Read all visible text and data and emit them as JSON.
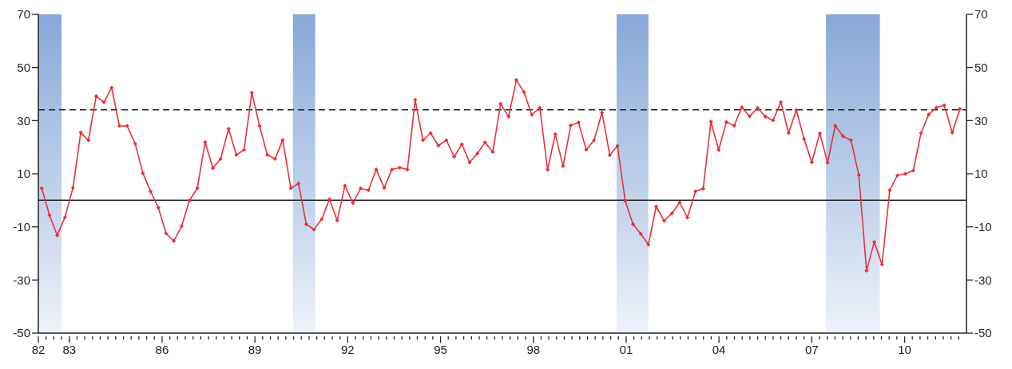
{
  "chart_data": {
    "type": "line",
    "color": "#e8303a",
    "marker": "diamond",
    "line_style": "solid",
    "x": [
      1982.11,
      1982.36,
      1982.61,
      1982.86,
      1983.12,
      1983.37,
      1983.62,
      1983.87,
      1984.12,
      1984.37,
      1984.62,
      1984.87,
      1985.13,
      1985.38,
      1985.63,
      1985.88,
      1986.13,
      1986.38,
      1986.63,
      1986.88,
      1987.14,
      1987.39,
      1987.64,
      1987.89,
      1988.15,
      1988.4,
      1988.65,
      1988.9,
      1989.15,
      1989.4,
      1989.65,
      1989.9,
      1990.16,
      1990.41,
      1990.66,
      1990.91,
      1991.16,
      1991.41,
      1991.66,
      1991.91,
      1992.17,
      1992.42,
      1992.67,
      1992.92,
      1993.18,
      1993.43,
      1993.68,
      1993.93,
      1994.18,
      1994.43,
      1994.68,
      1994.93,
      1995.19,
      1995.44,
      1995.69,
      1995.94,
      1996.19,
      1996.44,
      1996.69,
      1996.94,
      1997.2,
      1997.45,
      1997.7,
      1997.95,
      1998.21,
      1998.46,
      1998.71,
      1998.96,
      1999.21,
      1999.46,
      1999.71,
      1999.96,
      2000.22,
      2000.47,
      2000.72,
      2000.97,
      2001.22,
      2001.47,
      2001.72,
      2001.97,
      2002.23,
      2002.48,
      2002.73,
      2002.98,
      2003.24,
      2003.49,
      2003.74,
      2003.99,
      2004.24,
      2004.49,
      2004.74,
      2004.99,
      2005.25,
      2005.5,
      2005.75,
      2006.0,
      2006.25,
      2006.5,
      2006.75,
      2007.0,
      2007.26,
      2007.51,
      2007.76,
      2008.01,
      2008.27,
      2008.52,
      2008.77,
      2009.02,
      2009.27,
      2009.52,
      2009.77,
      2010.02,
      2010.28,
      2010.53,
      2010.78,
      2011.03,
      2011.28,
      2011.54,
      2011.79
    ],
    "values": [
      4.5,
      -5.6,
      -13.2,
      -6.4,
      4.7,
      25.5,
      22.6,
      39.2,
      36.9,
      42.4,
      28.0,
      28.0,
      21.3,
      10.2,
      3.3,
      -2.8,
      -12.5,
      -15.3,
      -9.8,
      -0.2,
      4.6,
      21.9,
      12.1,
      15.6,
      26.9,
      17.1,
      19.0,
      40.5,
      28.0,
      17.1,
      15.6,
      22.7,
      4.6,
      6.3,
      -9.0,
      -11.0,
      -7.1,
      0.4,
      -7.6,
      5.5,
      -1.0,
      4.5,
      3.8,
      11.6,
      4.7,
      11.6,
      12.3,
      11.6,
      37.8,
      22.6,
      25.3,
      20.6,
      22.6,
      16.4,
      21.1,
      14.3,
      17.6,
      21.8,
      18.2,
      36.3,
      31.5,
      45.3,
      40.7,
      32.2,
      34.9,
      11.5,
      24.9,
      12.9,
      28.2,
      29.3,
      19.0,
      22.6,
      33.0,
      17.0,
      20.5,
      -0.2,
      -9.0,
      -12.6,
      -16.7,
      -2.3,
      -7.7,
      -4.9,
      -0.8,
      -6.5,
      3.4,
      4.4,
      29.6,
      18.9,
      29.5,
      28.1,
      35.0,
      31.6,
      34.8,
      31.5,
      30.1,
      37.0,
      25.3,
      34.0,
      23.1,
      14.3,
      25.2,
      14.2,
      28.1,
      24.1,
      22.6,
      9.5,
      -26.5,
      -15.7,
      -24.2,
      3.8,
      9.4,
      9.9,
      11.2,
      25.3,
      32.3,
      34.9,
      35.8,
      25.5,
      34.4
    ],
    "xlim": [
      1982,
      2012
    ],
    "ylim": [
      -50,
      70
    ],
    "yticks": [
      -50,
      -30,
      -10,
      10,
      30,
      50,
      70
    ],
    "y2lim": [
      -50,
      70
    ],
    "y2ticks": [
      -50,
      -30,
      -10,
      10,
      30,
      50,
      70
    ],
    "xticks": [
      {
        "value": 1982,
        "label": "82"
      },
      {
        "value": 1982.25,
        "label": null
      },
      {
        "value": 1982.5,
        "label": null
      },
      {
        "value": 1982.75,
        "label": null
      },
      {
        "value": 1983,
        "label": "83"
      },
      {
        "value": 1983.25,
        "label": null
      },
      {
        "value": 1983.5,
        "label": null
      },
      {
        "value": 1983.75,
        "label": null
      },
      {
        "value": 1984,
        "label": null
      },
      {
        "value": 1984.25,
        "label": null
      },
      {
        "value": 1984.5,
        "label": null
      },
      {
        "value": 1984.75,
        "label": null
      },
      {
        "value": 1985,
        "label": null
      },
      {
        "value": 1985.25,
        "label": null
      },
      {
        "value": 1985.5,
        "label": null
      },
      {
        "value": 1985.75,
        "label": null
      },
      {
        "value": 1986,
        "label": "86"
      },
      {
        "value": 1986.25,
        "label": null
      },
      {
        "value": 1986.5,
        "label": null
      },
      {
        "value": 1986.75,
        "label": null
      },
      {
        "value": 1987,
        "label": null
      },
      {
        "value": 1987.25,
        "label": null
      },
      {
        "value": 1987.5,
        "label": null
      },
      {
        "value": 1987.75,
        "label": null
      },
      {
        "value": 1988,
        "label": null
      },
      {
        "value": 1988.25,
        "label": null
      },
      {
        "value": 1988.5,
        "label": null
      },
      {
        "value": 1988.75,
        "label": null
      },
      {
        "value": 1989,
        "label": "89"
      },
      {
        "value": 1989.25,
        "label": null
      },
      {
        "value": 1989.5,
        "label": null
      },
      {
        "value": 1989.75,
        "label": null
      },
      {
        "value": 1990,
        "label": null
      },
      {
        "value": 1990.25,
        "label": null
      },
      {
        "value": 1990.5,
        "label": null
      },
      {
        "value": 1990.75,
        "label": null
      },
      {
        "value": 1991,
        "label": null
      },
      {
        "value": 1991.25,
        "label": null
      },
      {
        "value": 1991.5,
        "label": null
      },
      {
        "value": 1991.75,
        "label": null
      },
      {
        "value": 1992,
        "label": "92"
      },
      {
        "value": 1992.25,
        "label": null
      },
      {
        "value": 1992.5,
        "label": null
      },
      {
        "value": 1992.75,
        "label": null
      },
      {
        "value": 1993,
        "label": null
      },
      {
        "value": 1993.25,
        "label": null
      },
      {
        "value": 1993.5,
        "label": null
      },
      {
        "value": 1993.75,
        "label": null
      },
      {
        "value": 1994,
        "label": null
      },
      {
        "value": 1994.25,
        "label": null
      },
      {
        "value": 1994.5,
        "label": null
      },
      {
        "value": 1994.75,
        "label": null
      },
      {
        "value": 1995,
        "label": "95"
      },
      {
        "value": 1995.25,
        "label": null
      },
      {
        "value": 1995.5,
        "label": null
      },
      {
        "value": 1995.75,
        "label": null
      },
      {
        "value": 1996,
        "label": null
      },
      {
        "value": 1996.25,
        "label": null
      },
      {
        "value": 1996.5,
        "label": null
      },
      {
        "value": 1996.75,
        "label": null
      },
      {
        "value": 1997,
        "label": null
      },
      {
        "value": 1997.25,
        "label": null
      },
      {
        "value": 1997.5,
        "label": null
      },
      {
        "value": 1997.75,
        "label": null
      },
      {
        "value": 1998,
        "label": "98"
      },
      {
        "value": 1998.25,
        "label": null
      },
      {
        "value": 1998.5,
        "label": null
      },
      {
        "value": 1998.75,
        "label": null
      },
      {
        "value": 1999,
        "label": null
      },
      {
        "value": 1999.25,
        "label": null
      },
      {
        "value": 1999.5,
        "label": null
      },
      {
        "value": 1999.75,
        "label": null
      },
      {
        "value": 2000,
        "label": null
      },
      {
        "value": 2000.25,
        "label": null
      },
      {
        "value": 2000.5,
        "label": null
      },
      {
        "value": 2000.75,
        "label": null
      },
      {
        "value": 2001,
        "label": "01"
      },
      {
        "value": 2001.25,
        "label": null
      },
      {
        "value": 2001.5,
        "label": null
      },
      {
        "value": 2001.75,
        "label": null
      },
      {
        "value": 2002,
        "label": null
      },
      {
        "value": 2002.25,
        "label": null
      },
      {
        "value": 2002.5,
        "label": null
      },
      {
        "value": 2002.75,
        "label": null
      },
      {
        "value": 2003,
        "label": null
      },
      {
        "value": 2003.25,
        "label": null
      },
      {
        "value": 2003.5,
        "label": null
      },
      {
        "value": 2003.75,
        "label": null
      },
      {
        "value": 2004,
        "label": "04"
      },
      {
        "value": 2004.25,
        "label": null
      },
      {
        "value": 2004.5,
        "label": null
      },
      {
        "value": 2004.75,
        "label": null
      },
      {
        "value": 2005,
        "label": null
      },
      {
        "value": 2005.25,
        "label": null
      },
      {
        "value": 2005.5,
        "label": null
      },
      {
        "value": 2005.75,
        "label": null
      },
      {
        "value": 2006,
        "label": null
      },
      {
        "value": 2006.25,
        "label": null
      },
      {
        "value": 2006.5,
        "label": null
      },
      {
        "value": 2006.75,
        "label": null
      },
      {
        "value": 2007,
        "label": "07"
      },
      {
        "value": 2007.25,
        "label": null
      },
      {
        "value": 2007.5,
        "label": null
      },
      {
        "value": 2007.75,
        "label": null
      },
      {
        "value": 2008,
        "label": null
      },
      {
        "value": 2008.25,
        "label": null
      },
      {
        "value": 2008.5,
        "label": null
      },
      {
        "value": 2008.75,
        "label": null
      },
      {
        "value": 2009,
        "label": null
      },
      {
        "value": 2009.25,
        "label": null
      },
      {
        "value": 2009.5,
        "label": null
      },
      {
        "value": 2009.75,
        "label": null
      },
      {
        "value": 2010,
        "label": "10"
      },
      {
        "value": 2010.25,
        "label": null
      },
      {
        "value": 2010.5,
        "label": null
      },
      {
        "value": 2010.75,
        "label": null
      },
      {
        "value": 2011,
        "label": null
      },
      {
        "value": 2011.25,
        "label": null
      },
      {
        "value": 2011.5,
        "label": null
      },
      {
        "value": 2011.75,
        "label": null
      }
    ],
    "ref_lines": [
      {
        "axis": "y",
        "value": 34.1,
        "line_style": "dashed",
        "color": "#222222"
      },
      {
        "axis": "y",
        "value": 0,
        "line_style": "solid",
        "color": "#222222"
      }
    ],
    "bands": [
      {
        "axis": "x",
        "from": 1982,
        "to": 1982.75,
        "color": "#88a8d8"
      },
      {
        "axis": "x",
        "from": 1990.23,
        "to": 1990.95,
        "color": "#88a8d8"
      },
      {
        "axis": "x",
        "from": 2000.69,
        "to": 2001.72,
        "color": "#88a8d8"
      },
      {
        "axis": "x",
        "from": 2007.46,
        "to": 2009.2,
        "color": "#88a8d8"
      }
    ]
  }
}
